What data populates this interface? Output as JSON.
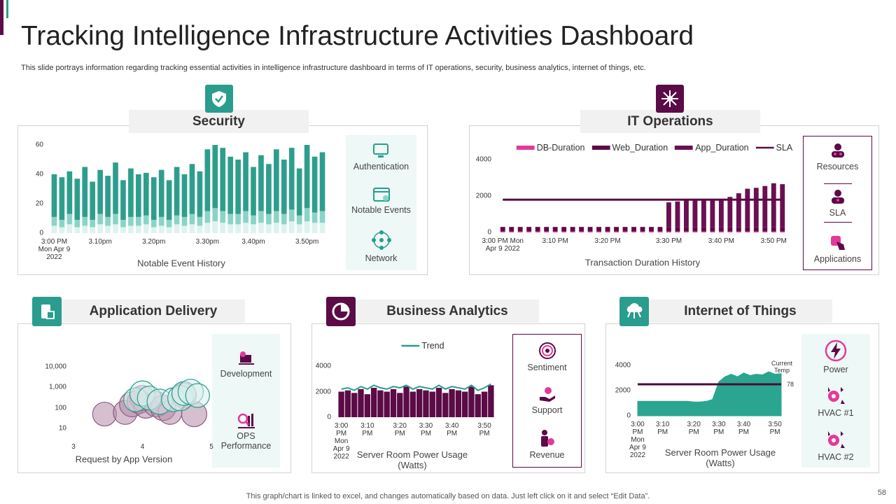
{
  "header": {
    "title": "Tracking Intelligence Infrastructure Activities Dashboard",
    "subtitle": "This slide portrays information regarding tracking essential activities in intelligence infrastructure dashboard in terms of IT operations, security, business analytics, internet of things, etc."
  },
  "panels": [
    {
      "title": "Security",
      "items": [
        "Authentication",
        "Notable Events",
        "Network"
      ]
    },
    {
      "title": "IT Operations",
      "items": [
        "Resources",
        "SLA",
        "Applications"
      ]
    },
    {
      "title": "Application Delivery",
      "items": [
        "Development",
        "OPS Performance"
      ]
    },
    {
      "title": "Business Analytics",
      "items": [
        "Sentiment",
        "Support",
        "Revenue"
      ]
    },
    {
      "title": "Internet of Things",
      "items": [
        "Power",
        "HVAC #1",
        "HVAC #2"
      ]
    }
  ],
  "chart_data": [
    {
      "type": "bar",
      "stacked": true,
      "x_label": "Notable Event History",
      "categories": [
        "3:00 PM\nMon Apr 9\n2022",
        null,
        null,
        null,
        null,
        null,
        "3.10pm",
        null,
        null,
        null,
        null,
        null,
        null,
        "3.20pm",
        null,
        null,
        null,
        null,
        null,
        null,
        "3.30pm",
        null,
        null,
        null,
        null,
        null,
        "3.40pm",
        null,
        null,
        null,
        null,
        null,
        null,
        "3.50pm",
        null,
        null
      ],
      "series": [
        {
          "color": "#dcf3ef",
          "values": [
            5,
            4,
            6,
            4,
            5,
            4,
            6,
            5,
            6,
            4,
            5,
            5,
            6,
            4,
            5,
            4,
            6,
            5,
            6,
            5,
            7,
            8,
            7,
            6,
            6,
            7,
            6,
            7,
            6,
            7,
            6,
            8,
            6,
            8,
            7,
            7
          ]
        },
        {
          "color": "#8ad4c7",
          "values": [
            6,
            5,
            7,
            5,
            6,
            5,
            7,
            6,
            7,
            5,
            6,
            6,
            6,
            5,
            6,
            5,
            6,
            6,
            7,
            6,
            8,
            9,
            8,
            7,
            7,
            8,
            6,
            8,
            7,
            8,
            7,
            8,
            6,
            9,
            7,
            8
          ]
        },
        {
          "color": "#2e9e8c",
          "values": [
            29,
            29,
            29,
            28,
            34,
            26,
            30,
            28,
            35,
            27,
            33,
            29,
            29,
            29,
            32,
            27,
            33,
            29,
            34,
            31,
            42,
            43,
            43,
            39,
            37,
            40,
            33,
            38,
            34,
            42,
            37,
            42,
            32,
            43,
            38,
            40
          ]
        }
      ],
      "ylim": [
        0,
        60
      ],
      "yticks": [
        0,
        20,
        40,
        60
      ]
    },
    {
      "type": "bar",
      "stacked": true,
      "legend": "top",
      "x_label": "Transaction Duration History",
      "categories": [
        "3:00 PM Mon\nApr 9 2022",
        null,
        null,
        null,
        null,
        null,
        "3:10 PM",
        null,
        null,
        null,
        null,
        null,
        "3:20 PM",
        null,
        null,
        null,
        null,
        null,
        null,
        "3:30 PM",
        null,
        null,
        null,
        null,
        null,
        "3:40 PM",
        null,
        null,
        null,
        null,
        null,
        "3:50 PM",
        null
      ],
      "series": [
        {
          "name": "DB-Duration",
          "color": "#e5399a",
          "values": [
            60,
            60,
            60,
            60,
            60,
            60,
            60,
            60,
            60,
            60,
            60,
            60,
            60,
            60,
            60,
            60,
            60,
            60,
            60,
            60,
            60,
            60,
            60,
            60,
            60,
            60,
            60,
            60,
            60,
            60,
            60,
            60,
            60
          ]
        },
        {
          "name": "Web_Duration",
          "color": "#5b0b46",
          "values": [
            240,
            240,
            240,
            240,
            240,
            240,
            240,
            240,
            240,
            240,
            240,
            240,
            240,
            240,
            240,
            240,
            240,
            240,
            240,
            240,
            240,
            240,
            240,
            240,
            240,
            240,
            240,
            240,
            240,
            240,
            240,
            240,
            240
          ]
        },
        {
          "name": "App_Duration",
          "color": "#6a0f52",
          "values": [
            0,
            0,
            0,
            0,
            0,
            0,
            0,
            0,
            0,
            0,
            0,
            0,
            0,
            0,
            0,
            0,
            0,
            0,
            0,
            1350,
            1400,
            1500,
            1550,
            1550,
            1550,
            1550,
            1650,
            1850,
            2100,
            2150,
            2250,
            2400,
            2350
          ]
        },
        {
          "name": "SLA",
          "type": "line",
          "color": "#5b0b46",
          "values": [
            1800,
            1800,
            1800,
            1800,
            1800,
            1800,
            1800,
            1800,
            1800,
            1800,
            1800,
            1800,
            1800,
            1800,
            1800,
            1800,
            1800,
            1800,
            1800,
            1800,
            1800,
            1800,
            1800,
            1800,
            1800,
            1800,
            1800,
            1800,
            1800,
            1800,
            1800,
            1800,
            1800
          ]
        }
      ],
      "ylim": [
        0,
        4000
      ],
      "yticks": [
        0,
        2000,
        4000
      ]
    },
    {
      "type": "bubble",
      "log_y": true,
      "x_label": "Request by App Version",
      "xlim": [
        3,
        5
      ],
      "xticks": [
        3,
        4,
        5
      ],
      "series": [
        {
          "color": "#b48ca9",
          "edge_color": "#8e5a82",
          "x": [
            3.45,
            3.75,
            3.85,
            3.95,
            4.0,
            4.05,
            4.2,
            4.3,
            4.4,
            4.6,
            4.75
          ],
          "values": [
            50,
            60,
            150,
            200,
            300,
            120,
            150,
            100,
            60,
            400,
            50
          ],
          "sizes": [
            17,
            17,
            18,
            17,
            18,
            17,
            18,
            18,
            17,
            18,
            18
          ]
        },
        {
          "color": "#d9efec",
          "edge_color": "#2a9d8f",
          "x": [
            3.9,
            4.0,
            4.1,
            4.25,
            4.45,
            4.55,
            4.6,
            4.7,
            4.8
          ],
          "values": [
            250,
            500,
            300,
            200,
            250,
            300,
            500,
            600,
            400
          ],
          "sizes": [
            17,
            18,
            17,
            18,
            17,
            18,
            17,
            18,
            17
          ]
        }
      ],
      "ylim": [
        5,
        20000
      ],
      "yticks": [
        {
          "value": 10,
          "label": "10"
        },
        {
          "value": 100,
          "label": "100"
        },
        {
          "value": 1000,
          "label": "1,000"
        },
        {
          "value": 10000,
          "label": "10,000"
        }
      ]
    },
    {
      "type": "bar",
      "legend": "top",
      "x_label": "Server Room Power Usage\n(Watts)",
      "categories": [
        "3:00\nPM\nMon\nApr 9\n2022",
        null,
        null,
        null,
        "3:10\nPM",
        null,
        null,
        null,
        null,
        "3:20\nPM",
        null,
        null,
        null,
        "3:30\nPM",
        null,
        null,
        null,
        "3:40\nPM",
        null,
        null,
        null,
        null,
        "3:50\nPM",
        null
      ],
      "series": [
        {
          "color": "#5b0b46",
          "values": [
            2000,
            2100,
            1900,
            2200,
            1800,
            2300,
            2100,
            2000,
            2200,
            1900,
            2400,
            2000,
            2200,
            2100,
            2000,
            2300,
            1900,
            2200,
            2100,
            2000,
            2400,
            1800,
            2000,
            2500
          ]
        },
        {
          "name": "Trend",
          "type": "line",
          "color": "#2a9d8f",
          "values": [
            2200,
            2300,
            2100,
            2400,
            2200,
            2500,
            2300,
            2200,
            2400,
            2300,
            2500,
            2200,
            2400,
            2300,
            2200,
            2500,
            2200,
            2400,
            2300,
            2200,
            2500,
            2100,
            2300,
            2600
          ]
        }
      ],
      "ylim": [
        0,
        4000
      ],
      "yticks": [
        0,
        2000,
        4000
      ]
    },
    {
      "type": "area",
      "x_label": "Server Room Power Usage\n(Watts)",
      "categories": [
        "3:00\nPM\nMon\nApr 9\n2022",
        null,
        null,
        null,
        "3:10\nPM",
        null,
        null,
        null,
        null,
        "3:20\nPM",
        null,
        null,
        null,
        "3:30\nPM",
        null,
        null,
        null,
        "3:40\nPM",
        null,
        null,
        null,
        null,
        "3:50\nPM",
        null
      ],
      "series": [
        {
          "color": "#2aa58f",
          "values": [
            1150,
            1150,
            1150,
            1150,
            1150,
            1150,
            1150,
            1150,
            1150,
            1100,
            1100,
            1150,
            1300,
            2700,
            3100,
            3300,
            3100,
            3400,
            3200,
            3300,
            3250,
            3500,
            3300,
            3350
          ]
        },
        {
          "type": "line",
          "color": "#4a0a3a",
          "values": [
            2500,
            2500,
            2500,
            2500,
            2500,
            2500,
            2500,
            2500,
            2500,
            2500,
            2500,
            2500,
            2500,
            2500,
            2500,
            2500,
            2500,
            2500,
            2500,
            2500,
            2500,
            2500,
            2500,
            2500
          ]
        }
      ],
      "annotations": [
        "Current\nTemp",
        "78"
      ],
      "ylim": [
        0,
        4000
      ],
      "yticks": [
        0,
        2000,
        4000
      ]
    }
  ],
  "footer": {
    "note": "This graph/chart is linked to excel, and changes automatically based on data. Just left click on it and select “Edit Data”.",
    "page": 58
  }
}
